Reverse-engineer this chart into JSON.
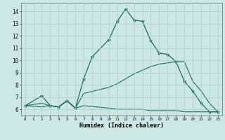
{
  "title": "",
  "xlabel": "Humidex (Indice chaleur)",
  "bg_color": "#cce8e5",
  "grid_color": "#aacfcc",
  "line_color": "#1a6b5a",
  "xlim": [
    -0.5,
    23.5
  ],
  "ylim": [
    5.5,
    14.7
  ],
  "xticks": [
    0,
    1,
    2,
    3,
    4,
    5,
    6,
    7,
    8,
    9,
    10,
    11,
    12,
    13,
    14,
    15,
    16,
    17,
    18,
    19,
    20,
    21,
    22,
    23
  ],
  "yticks": [
    6,
    7,
    8,
    9,
    10,
    11,
    12,
    13,
    14
  ],
  "series": [
    {
      "x": [
        0,
        2,
        3,
        4,
        5,
        6,
        7,
        8,
        10,
        11,
        12,
        13,
        14,
        15,
        16,
        17,
        18,
        19,
        20,
        21,
        22,
        23
      ],
      "y": [
        6.3,
        7.1,
        6.3,
        6.2,
        6.7,
        6.1,
        8.5,
        10.3,
        11.7,
        13.2,
        14.2,
        13.3,
        13.2,
        11.6,
        10.6,
        10.5,
        9.9,
        8.3,
        7.5,
        6.5,
        5.8,
        5.8
      ],
      "marker": true
    },
    {
      "x": [
        0,
        2,
        3,
        4,
        5,
        6,
        7,
        10,
        11,
        12,
        13,
        14,
        15,
        16,
        17,
        18,
        19,
        20,
        21,
        22,
        23
      ],
      "y": [
        6.3,
        6.5,
        6.3,
        6.2,
        6.7,
        6.1,
        7.3,
        7.8,
        8.1,
        8.5,
        8.9,
        9.2,
        9.5,
        9.7,
        9.8,
        9.9,
        9.9,
        8.3,
        7.5,
        6.5,
        5.8
      ],
      "marker": false
    },
    {
      "x": [
        0,
        2,
        3,
        4,
        5,
        6,
        7,
        10,
        11,
        12,
        13,
        14,
        15,
        16,
        17,
        18,
        19,
        20,
        21,
        22,
        23
      ],
      "y": [
        6.3,
        6.2,
        6.3,
        6.2,
        6.7,
        6.1,
        6.3,
        6.1,
        6.0,
        6.0,
        6.0,
        6.0,
        5.9,
        5.9,
        5.9,
        5.9,
        5.8,
        5.8,
        5.8,
        5.8,
        5.8
      ],
      "marker": false
    }
  ]
}
